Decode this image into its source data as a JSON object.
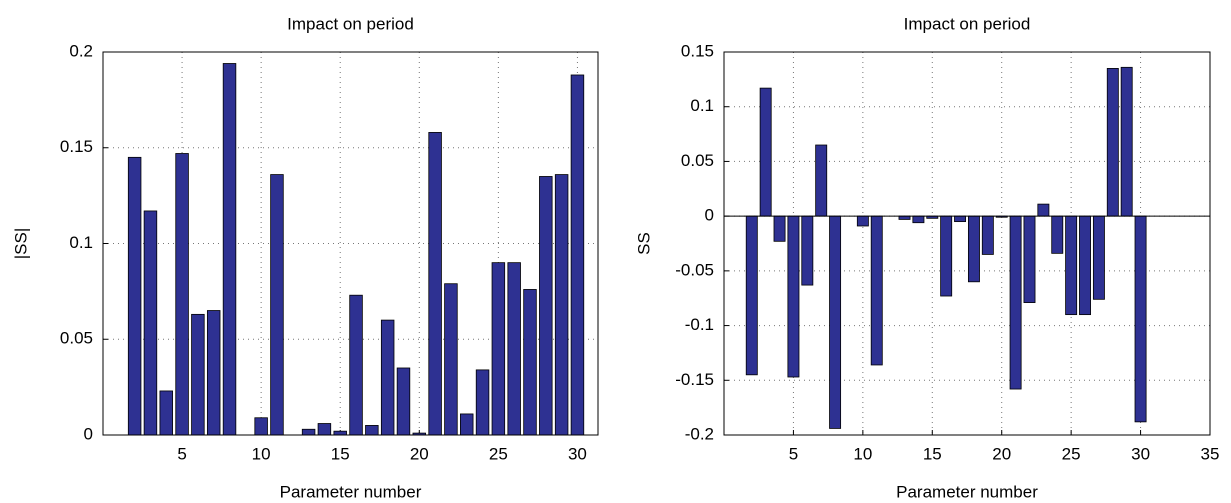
{
  "chart_data": [
    {
      "type": "bar",
      "title": "Impact on period",
      "x_label": "Parameter number",
      "y_label": "|SS|",
      "x": [
        1,
        2,
        3,
        4,
        5,
        6,
        7,
        8,
        9,
        10,
        11,
        12,
        13,
        14,
        15,
        16,
        17,
        18,
        19,
        20,
        21,
        22,
        23,
        24,
        25,
        26,
        27,
        28,
        29,
        30
      ],
      "values": [
        0,
        0.145,
        0.117,
        0.023,
        0.147,
        0.063,
        0.065,
        0.194,
        0,
        0.009,
        0.136,
        0,
        0.003,
        0.006,
        0.002,
        0.073,
        0.005,
        0.06,
        0.035,
        0.001,
        0.158,
        0.079,
        0.011,
        0.034,
        0.09,
        0.09,
        0.076,
        0.135,
        0.136,
        0.188
      ],
      "color": "#2e3192",
      "xlim": [
        0,
        31.3
      ],
      "xticks": [
        5,
        10,
        15,
        20,
        25,
        30
      ],
      "ylim": [
        0,
        0.2
      ],
      "yticks": [
        0,
        0.05,
        0.1,
        0.15,
        0.2
      ],
      "grid": true
    },
    {
      "type": "bar",
      "title": "Impact on period",
      "x_label": "Parameter number",
      "y_label": "SS",
      "x": [
        1,
        2,
        3,
        4,
        5,
        6,
        7,
        8,
        9,
        10,
        11,
        12,
        13,
        14,
        15,
        16,
        17,
        18,
        19,
        20,
        21,
        22,
        23,
        24,
        25,
        26,
        27,
        28,
        29,
        30
      ],
      "values": [
        0,
        -0.145,
        0.117,
        -0.023,
        -0.147,
        -0.063,
        0.065,
        -0.194,
        0,
        -0.009,
        -0.136,
        0,
        -0.003,
        -0.006,
        -0.002,
        -0.073,
        -0.005,
        -0.06,
        -0.035,
        -0.001,
        -0.158,
        -0.079,
        0.011,
        -0.034,
        -0.09,
        -0.09,
        -0.076,
        0.135,
        0.136,
        -0.188
      ],
      "color": "#2e3192",
      "xlim": [
        0,
        35
      ],
      "xticks": [
        5,
        10,
        15,
        20,
        25,
        30,
        35
      ],
      "ylim": [
        -0.2,
        0.15
      ],
      "yticks": [
        -0.2,
        -0.15,
        -0.1,
        -0.05,
        0,
        0.05,
        0.1,
        0.15
      ],
      "grid": true
    }
  ]
}
